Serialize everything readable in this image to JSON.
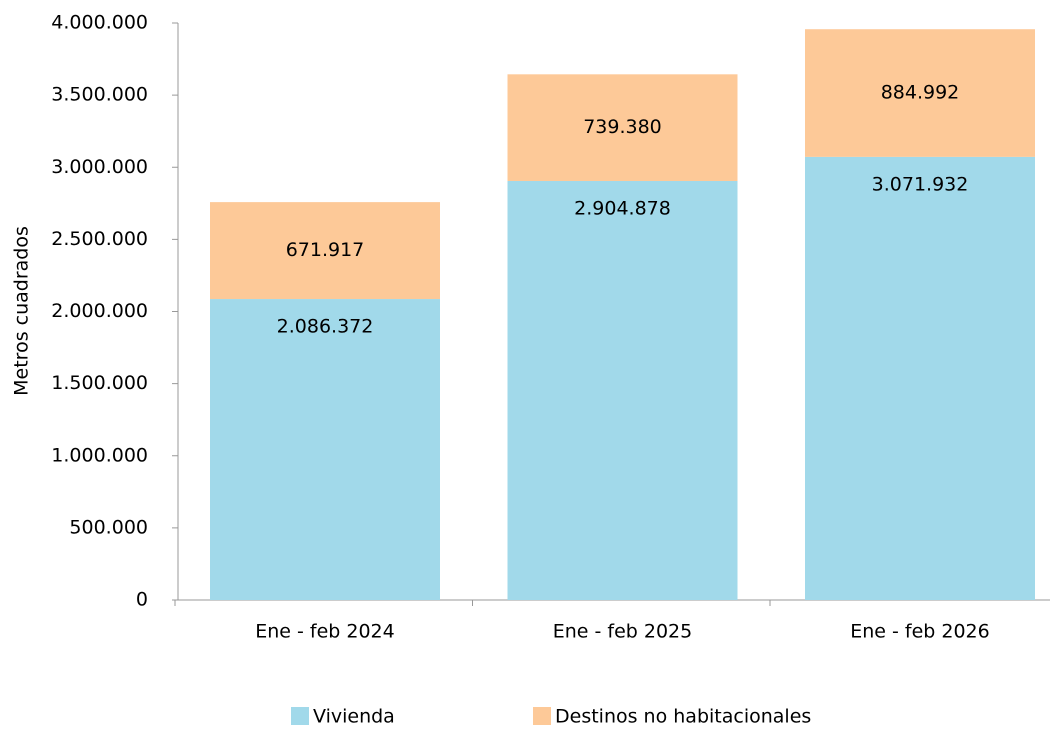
{
  "chart_data": {
    "type": "stacked_bar",
    "y_axis_label": "Metros cuadrados",
    "categories": [
      "Ene - feb 2024",
      "Ene - feb 2025",
      "Ene - feb 2026"
    ],
    "series": [
      {
        "name": "Vivienda",
        "color": "#a1d9ea",
        "values": [
          2086372,
          2904878,
          3071932
        ],
        "value_labels": [
          "2.086.372",
          "2.904.878",
          "3.071.932"
        ]
      },
      {
        "name": "Destinos no habitacionales",
        "color": "#fdc998",
        "values": [
          671917,
          739380,
          884992
        ],
        "value_labels": [
          "671.917",
          "739.380",
          "884.992"
        ]
      }
    ],
    "ylim": [
      0,
      4000000
    ],
    "yticks": [
      0,
      {
        "value": 500000,
        "label": "500.000"
      },
      {
        "value": 1000000,
        "label": "1.000.000"
      },
      {
        "value": 1500000,
        "label": "1.500.000"
      },
      {
        "value": 2000000,
        "label": "2.000.000"
      },
      {
        "value": 2500000,
        "label": "2.500.000"
      },
      {
        "value": 3000000,
        "label": "3.000.000"
      },
      {
        "value": 3500000,
        "label": "3.500.000"
      },
      {
        "value": 4000000,
        "label": "4.000.000"
      }
    ],
    "grid": false,
    "legend": "bottom"
  }
}
